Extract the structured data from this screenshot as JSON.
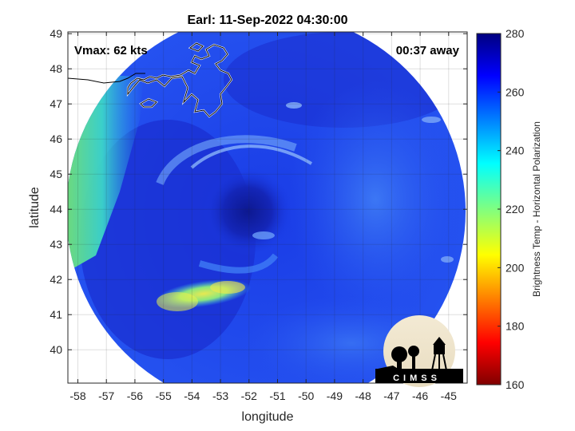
{
  "chart_data": {
    "type": "heatmap",
    "title": "Earl: 11-Sep-2022 04:30:00",
    "xlabel": "longitude",
    "ylabel": "latitude",
    "xlim": [
      -58.35,
      -44.35
    ],
    "ylim": [
      39.05,
      49.05
    ],
    "x_ticks": [
      -58,
      -57,
      -56,
      -55,
      -54,
      -53,
      -52,
      -51,
      -50,
      -49,
      -48,
      -47,
      -46,
      -45
    ],
    "y_ticks": [
      40,
      41,
      42,
      43,
      44,
      45,
      46,
      47,
      48,
      49
    ],
    "grid": true,
    "annotations": {
      "vmax": "Vmax: 62 kts",
      "time_offset": "00:37 away"
    },
    "colorbar": {
      "label": "Brightness Temp - Horizontal Polarization",
      "range": [
        160,
        280
      ],
      "ticks": [
        160,
        180,
        200,
        220,
        240,
        260,
        280
      ],
      "colormap": "jet"
    },
    "swath": {
      "center_lon": -51.4,
      "center_lat": 44.0,
      "storm_center_lon": -52.2,
      "storm_center_lat": 43.9
    },
    "features": [
      {
        "name": "storm core",
        "lon": -52.2,
        "lat": 43.9,
        "value": 270
      },
      {
        "name": "west warm band",
        "lon": -57.8,
        "lat": 45.5,
        "value": 228
      },
      {
        "name": "south spiral band",
        "lon": -53.9,
        "lat": 41.7,
        "value": 212
      },
      {
        "name": "eastern field",
        "lon": -47.5,
        "lat": 44.0,
        "value": 255
      }
    ],
    "logo": "CIMSS"
  }
}
